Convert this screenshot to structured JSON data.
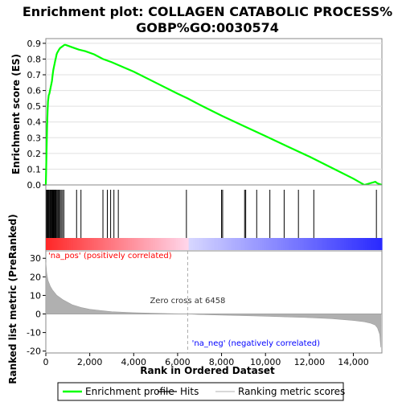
{
  "chart_data": {
    "type": "line",
    "title_line1": "Enrichment plot: COLLAGEN CATABOLIC PROCESS%",
    "title_line2": "GOBP%GO:0030574",
    "es_panel": {
      "ylabel": "Enrichment score (ES)",
      "ylim": [
        0.0,
        0.93
      ],
      "yticks": [
        "0.0",
        "0.1",
        "0.2",
        "0.3",
        "0.4",
        "0.5",
        "0.6",
        "0.7",
        "0.8",
        "0.9"
      ],
      "ytick_values": [
        0.0,
        0.1,
        0.2,
        0.3,
        0.4,
        0.5,
        0.6,
        0.7,
        0.8,
        0.9
      ],
      "series": [
        {
          "name": "Enrichment profile",
          "color": "#00ff00",
          "x": [
            0,
            20,
            40,
            60,
            80,
            100,
            130,
            160,
            190,
            220,
            250,
            280,
            310,
            340,
            370,
            400,
            430,
            460,
            490,
            520,
            560,
            600,
            650,
            700,
            750,
            800,
            850,
            900,
            1000,
            1200,
            1500,
            1800,
            2200,
            2600,
            3000,
            3500,
            4000,
            5000,
            6000,
            6458,
            7000,
            8000,
            9000,
            10000,
            11000,
            12000,
            13000,
            14000,
            14500,
            15000,
            15100,
            15300
          ],
          "y": [
            0.0,
            0.12,
            0.26,
            0.38,
            0.47,
            0.53,
            0.57,
            0.58,
            0.6,
            0.62,
            0.64,
            0.66,
            0.7,
            0.73,
            0.75,
            0.77,
            0.79,
            0.81,
            0.83,
            0.84,
            0.85,
            0.86,
            0.87,
            0.875,
            0.88,
            0.885,
            0.89,
            0.89,
            0.885,
            0.875,
            0.86,
            0.85,
            0.83,
            0.8,
            0.78,
            0.75,
            0.72,
            0.65,
            0.58,
            0.55,
            0.51,
            0.44,
            0.375,
            0.31,
            0.245,
            0.18,
            0.11,
            0.04,
            0.0,
            0.02,
            0.01,
            0.0
          ]
        }
      ]
    },
    "hits_panel": {
      "hit_positions": [
        30,
        60,
        90,
        130,
        170,
        200,
        240,
        270,
        300,
        330,
        360,
        390,
        420,
        450,
        480,
        520,
        560,
        600,
        650,
        700,
        760,
        820,
        1400,
        1600,
        2600,
        2800,
        2950,
        3100,
        3300,
        6400,
        8000,
        8050,
        9050,
        9100,
        9600,
        10200,
        10850,
        11500,
        12200,
        15050
      ]
    },
    "rank_panel": {
      "ylabel": "Ranked list metric (PreRanked)",
      "xlabel": "Rank in Ordered Dataset",
      "ylim": [
        -21,
        34
      ],
      "yticks": [
        "30",
        "20",
        "10",
        "0",
        "-10",
        "-20"
      ],
      "ytick_values": [
        30,
        20,
        10,
        0,
        -10,
        -20
      ],
      "xlim": [
        0,
        15300
      ],
      "xticks": [
        "0",
        "2,000",
        "4,000",
        "6,000",
        "8,000",
        "10,000",
        "12,000",
        "14,000"
      ],
      "xtick_values": [
        0,
        2000,
        4000,
        6000,
        8000,
        10000,
        12000,
        14000
      ],
      "zero_cross": 6458,
      "zero_cross_label": "Zero cross at 6458",
      "pos_label": "'na_pos' (positively correlated)",
      "neg_label": "'na_neg' (negatively correlated)",
      "pos_color": "#ff0000",
      "neg_color": "#0000ff",
      "metric_x": [
        0,
        40,
        100,
        200,
        300,
        500,
        800,
        1200,
        1600,
        2000,
        3000,
        4000,
        5000,
        6000,
        6458,
        7000,
        8000,
        9000,
        10000,
        11000,
        12000,
        13000,
        13500,
        14000,
        14500,
        14800,
        15000,
        15100,
        15200,
        15250
      ],
      "metric_y": [
        28,
        22,
        18,
        15,
        13,
        10,
        7.5,
        5,
        3.5,
        2.5,
        1.2,
        0.7,
        0.35,
        0.1,
        0.0,
        -0.3,
        -0.6,
        -0.9,
        -1.2,
        -1.6,
        -2.0,
        -2.5,
        -3.0,
        -3.5,
        -4.2,
        -5.0,
        -6.0,
        -7.5,
        -11,
        -18
      ]
    },
    "legend": [
      {
        "label": "Enrichment profile",
        "color": "#00ff00"
      },
      {
        "label": "Hits",
        "color": "#000000"
      },
      {
        "label": "Ranking metric scores",
        "color": "#c0c0c0"
      }
    ]
  }
}
